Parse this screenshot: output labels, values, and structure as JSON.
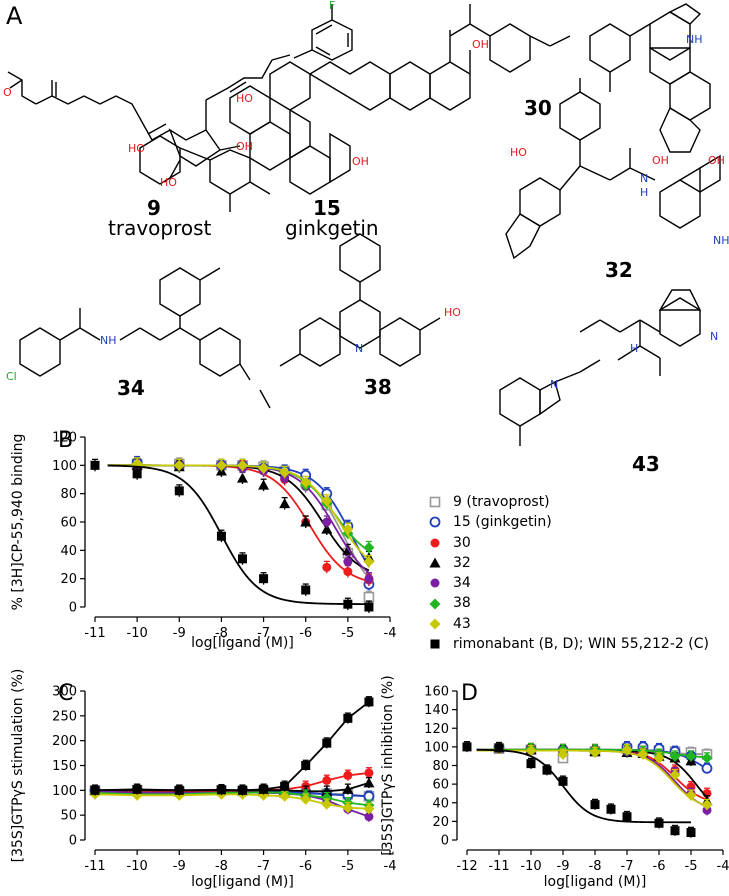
{
  "figure": {
    "panel_a_label": "A",
    "compounds": [
      {
        "id": "9",
        "name": "travoprost"
      },
      {
        "id": "15",
        "name": "ginkgetin"
      },
      {
        "id": "30",
        "name": ""
      },
      {
        "id": "32",
        "name": ""
      },
      {
        "id": "34",
        "name": ""
      },
      {
        "id": "38",
        "name": ""
      },
      {
        "id": "43",
        "name": ""
      }
    ],
    "atoms": {
      "F": "F",
      "O": "O",
      "OH": "OH",
      "HO": "HO",
      "NH": "NH",
      "N": "N",
      "H": "H",
      "Cl": "Cl"
    }
  },
  "legend": [
    {
      "label": "9 (travoprost)",
      "color": "#999999",
      "marker": "square-open"
    },
    {
      "label": "15 (ginkgetin)",
      "color": "#1f3fbf",
      "marker": "circle-open"
    },
    {
      "label": "30",
      "color": "#ee1c1c",
      "marker": "circle"
    },
    {
      "label": "32",
      "color": "#000000",
      "marker": "triangle"
    },
    {
      "label": "34",
      "color": "#7b1fa2",
      "marker": "circle"
    },
    {
      "label": "38",
      "color": "#22b522",
      "marker": "diamond"
    },
    {
      "label": "43",
      "color": "#c8c800",
      "marker": "diamond"
    },
    {
      "label": "rimonabant (B, D); WIN 55,212-2 (C)",
      "color": "#000000",
      "marker": "square"
    }
  ],
  "chart_data": [
    {
      "panel": "B",
      "type": "scatter",
      "xlabel": "log[ligand (M)]",
      "ylabel": "% [3H]CP-55,940 binding",
      "xlim": [
        -11,
        -4
      ],
      "ylim": [
        0,
        120
      ],
      "xticks": [
        -11,
        -10,
        -9,
        -8,
        -7,
        -6,
        -5,
        -4
      ],
      "yticks": [
        0,
        20,
        40,
        60,
        80,
        100,
        120
      ],
      "series": [
        {
          "name": "9 (travoprost)",
          "x": [
            -10,
            -9,
            -8,
            -7.5,
            -7,
            -6.5,
            -6,
            -5.5,
            -5,
            -4.5
          ],
          "y": [
            101,
            101,
            100,
            100,
            99,
            96,
            88,
            72,
            38,
            7
          ],
          "fit": {
            "top": 100,
            "bottom": 0,
            "logec50": -5.1
          }
        },
        {
          "name": "15 (ginkgetin)",
          "x": [
            -10,
            -9,
            -8,
            -7.5,
            -7,
            -6.5,
            -6,
            -5.5,
            -5,
            -4.5
          ],
          "y": [
            102,
            100,
            100,
            100,
            98,
            96,
            93,
            80,
            57,
            16
          ],
          "fit": {
            "top": 100,
            "bottom": 0,
            "logec50": -4.9
          }
        },
        {
          "name": "30",
          "x": [
            -10,
            -9,
            -8,
            -7.5,
            -7,
            -6.5,
            -6,
            -5.5,
            -5,
            -4.5
          ],
          "y": [
            100,
            100,
            100,
            99,
            96,
            90,
            60,
            28,
            25,
            19
          ],
          "fit": {
            "top": 100,
            "bottom": 15,
            "logec50": -5.9
          }
        },
        {
          "name": "32",
          "x": [
            -10,
            -9,
            -8,
            -7.5,
            -7,
            -6.5,
            -6,
            -5.5,
            -5,
            -4.5
          ],
          "y": [
            100,
            99,
            96,
            91,
            86,
            73,
            60,
            55,
            40,
            35
          ],
          "fit": {
            "top": 100,
            "bottom": 20,
            "logec50": -5.6
          }
        },
        {
          "name": "34",
          "x": [
            -10,
            -9,
            -8,
            -7.5,
            -7,
            -6.5,
            -6,
            -5.5,
            -5,
            -4.5
          ],
          "y": [
            100,
            100,
            100,
            98,
            96,
            91,
            85,
            60,
            32,
            20
          ],
          "fit": {
            "top": 100,
            "bottom": 12,
            "logec50": -5.3
          }
        },
        {
          "name": "38",
          "x": [
            -10,
            -9,
            -8,
            -7.5,
            -7,
            -6.5,
            -6,
            -5.5,
            -5,
            -4.5
          ],
          "y": [
            101,
            100,
            100,
            100,
            98,
            95,
            86,
            73,
            52,
            42
          ],
          "fit": {
            "top": 100,
            "bottom": 30,
            "logec50": -5.3
          }
        },
        {
          "name": "43",
          "x": [
            -10,
            -9,
            -8,
            -7.5,
            -7,
            -6.5,
            -6,
            -5.5,
            -5,
            -4.5
          ],
          "y": [
            101,
            100,
            100,
            100,
            98,
            95,
            88,
            75,
            55,
            32
          ],
          "fit": {
            "top": 100,
            "bottom": 20,
            "logec50": -5.2
          }
        },
        {
          "name": "rimonabant",
          "x": [
            -11,
            -10,
            -9,
            -8,
            -7.5,
            -7,
            -6,
            -5,
            -4.5
          ],
          "y": [
            100,
            94,
            82,
            50,
            34,
            20,
            12,
            2,
            0
          ],
          "fit": {
            "top": 100,
            "bottom": 2,
            "logec50": -8.0
          }
        }
      ]
    },
    {
      "panel": "C",
      "type": "scatter",
      "xlabel": "log[ligand (M)]",
      "ylabel": "[35S]GTPγS stimulation (%)",
      "xlim": [
        -11,
        -4
      ],
      "ylim": [
        0,
        300
      ],
      "xticks": [
        -11,
        -10,
        -9,
        -8,
        -7,
        -6,
        -5,
        -4
      ],
      "yticks": [
        0,
        50,
        100,
        150,
        200,
        250,
        300
      ],
      "series": [
        {
          "name": "9 (travoprost)",
          "x": [
            -11,
            -10,
            -9,
            -8,
            -7.5,
            -7,
            -6.5,
            -6,
            -5.5,
            -5,
            -4.5
          ],
          "y": [
            100,
            100,
            98,
            100,
            99,
            98,
            95,
            93,
            93,
            92,
            88
          ]
        },
        {
          "name": "15 (ginkgetin)",
          "x": [
            -11,
            -10,
            -9,
            -8,
            -7.5,
            -7,
            -6.5,
            -6,
            -5.5,
            -5,
            -4.5
          ],
          "y": [
            100,
            100,
            100,
            98,
            100,
            99,
            97,
            95,
            92,
            90,
            88
          ]
        },
        {
          "name": "30",
          "x": [
            -11,
            -10,
            -9,
            -8,
            -7.5,
            -7,
            -6.5,
            -6,
            -5.5,
            -5,
            -4.5
          ],
          "y": [
            98,
            99,
            98,
            98,
            100,
            100,
            102,
            108,
            120,
            130,
            135
          ]
        },
        {
          "name": "32",
          "x": [
            -11,
            -10,
            -9,
            -8,
            -7.5,
            -7,
            -6.5,
            -6,
            -5.5,
            -5,
            -4.5
          ],
          "y": [
            100,
            100,
            100,
            100,
            100,
            100,
            100,
            98,
            98,
            102,
            115
          ]
        },
        {
          "name": "34",
          "x": [
            -11,
            -10,
            -9,
            -8,
            -7.5,
            -7,
            -6.5,
            -6,
            -5.5,
            -5,
            -4.5
          ],
          "y": [
            98,
            95,
            95,
            95,
            96,
            95,
            94,
            90,
            80,
            62,
            47
          ]
        },
        {
          "name": "38",
          "x": [
            -11,
            -10,
            -9,
            -8,
            -7.5,
            -7,
            -6.5,
            -6,
            -5.5,
            -5,
            -4.5
          ],
          "y": [
            95,
            92,
            92,
            95,
            95,
            96,
            95,
            90,
            85,
            75,
            70
          ]
        },
        {
          "name": "43",
          "x": [
            -11,
            -10,
            -9,
            -8,
            -7.5,
            -7,
            -6.5,
            -6,
            -5.5,
            -5,
            -4.5
          ],
          "y": [
            92,
            90,
            90,
            92,
            92,
            90,
            88,
            82,
            72,
            65,
            63
          ]
        },
        {
          "name": "WIN 55,212-2",
          "x": [
            -11,
            -10,
            -9,
            -8,
            -7.5,
            -7,
            -6.5,
            -6,
            -5.5,
            -5,
            -4.5
          ],
          "y": [
            100,
            102,
            100,
            101,
            100,
            102,
            108,
            150,
            195,
            245,
            278
          ]
        }
      ]
    },
    {
      "panel": "D",
      "type": "scatter",
      "xlabel": "log[ligand (M)]",
      "ylabel": "[35S]GTPγS inhibition (%)",
      "xlim": [
        -12,
        -4
      ],
      "ylim": [
        0,
        160
      ],
      "xticks": [
        -12,
        -11,
        -10,
        -9,
        -8,
        -7,
        -6,
        -5,
        -4
      ],
      "yticks": [
        0,
        20,
        40,
        60,
        80,
        100,
        120,
        140,
        160
      ],
      "series": [
        {
          "name": "9 (travoprost)",
          "x": [
            -11,
            -10,
            -9,
            -8,
            -7,
            -6.5,
            -6,
            -5.5,
            -5,
            -4.5
          ],
          "y": [
            98,
            97,
            88,
            95,
            98,
            97,
            96,
            95,
            94,
            92
          ],
          "fit": {
            "top": 97,
            "bottom": 92,
            "logec50": -6.0
          }
        },
        {
          "name": "15 (ginkgetin)",
          "x": [
            -11,
            -10,
            -9,
            -8,
            -7,
            -6.5,
            -6,
            -5.5,
            -5,
            -4.5
          ],
          "y": [
            99,
            98,
            97,
            96,
            100,
            100,
            98,
            95,
            90,
            77
          ],
          "fit": {
            "top": 97,
            "bottom": 60,
            "logec50": -4.6
          }
        },
        {
          "name": "30",
          "x": [
            -11,
            -10,
            -9,
            -8,
            -7,
            -6.5,
            -6,
            -5.5,
            -5,
            -4.5
          ],
          "y": [
            99,
            98,
            97,
            97,
            96,
            95,
            92,
            75,
            57,
            50
          ],
          "fit": {
            "top": 97,
            "bottom": 38,
            "logec50": -5.5
          }
        },
        {
          "name": "32",
          "x": [
            -11,
            -10,
            -9,
            -8,
            -7,
            -6.5,
            -6,
            -5.5,
            -5,
            -4.5
          ],
          "y": [
            99,
            97,
            96,
            95,
            94,
            93,
            90,
            88,
            85,
            42
          ],
          "fit": {
            "top": 96,
            "bottom": 20,
            "logec50": -4.8
          }
        },
        {
          "name": "34",
          "x": [
            -11,
            -10,
            -9,
            -8,
            -7,
            -6.5,
            -6,
            -5.5,
            -5,
            -4.5
          ],
          "y": [
            98,
            96,
            95,
            96,
            95,
            93,
            90,
            72,
            50,
            32
          ],
          "fit": {
            "top": 96,
            "bottom": 30,
            "logec50": -5.5
          }
        },
        {
          "name": "38",
          "x": [
            -11,
            -10,
            -9,
            -8,
            -7,
            -6.5,
            -6,
            -5.5,
            -5,
            -4.5
          ],
          "y": [
            99,
            98,
            97,
            97,
            96,
            95,
            92,
            90,
            90,
            88
          ],
          "fit": {
            "top": 97,
            "bottom": 88,
            "logec50": -5.5
          }
        },
        {
          "name": "43",
          "x": [
            -11,
            -10,
            -9,
            -8,
            -7,
            -6.5,
            -6,
            -5.5,
            -5,
            -4.5
          ],
          "y": [
            98,
            96,
            92,
            94,
            97,
            92,
            88,
            70,
            48,
            38
          ],
          "fit": {
            "top": 96,
            "bottom": 32,
            "logec50": -5.6
          }
        },
        {
          "name": "rimonabant",
          "x": [
            -12,
            -11,
            -10,
            -9.5,
            -9,
            -8,
            -7.5,
            -7,
            -6,
            -5.5,
            -5
          ],
          "y": [
            100,
            99,
            82,
            75,
            63,
            38,
            33,
            25,
            18,
            10,
            8
          ],
          "fit": {
            "top": 97,
            "bottom": 19,
            "logec50": -9.0
          }
        }
      ]
    }
  ]
}
